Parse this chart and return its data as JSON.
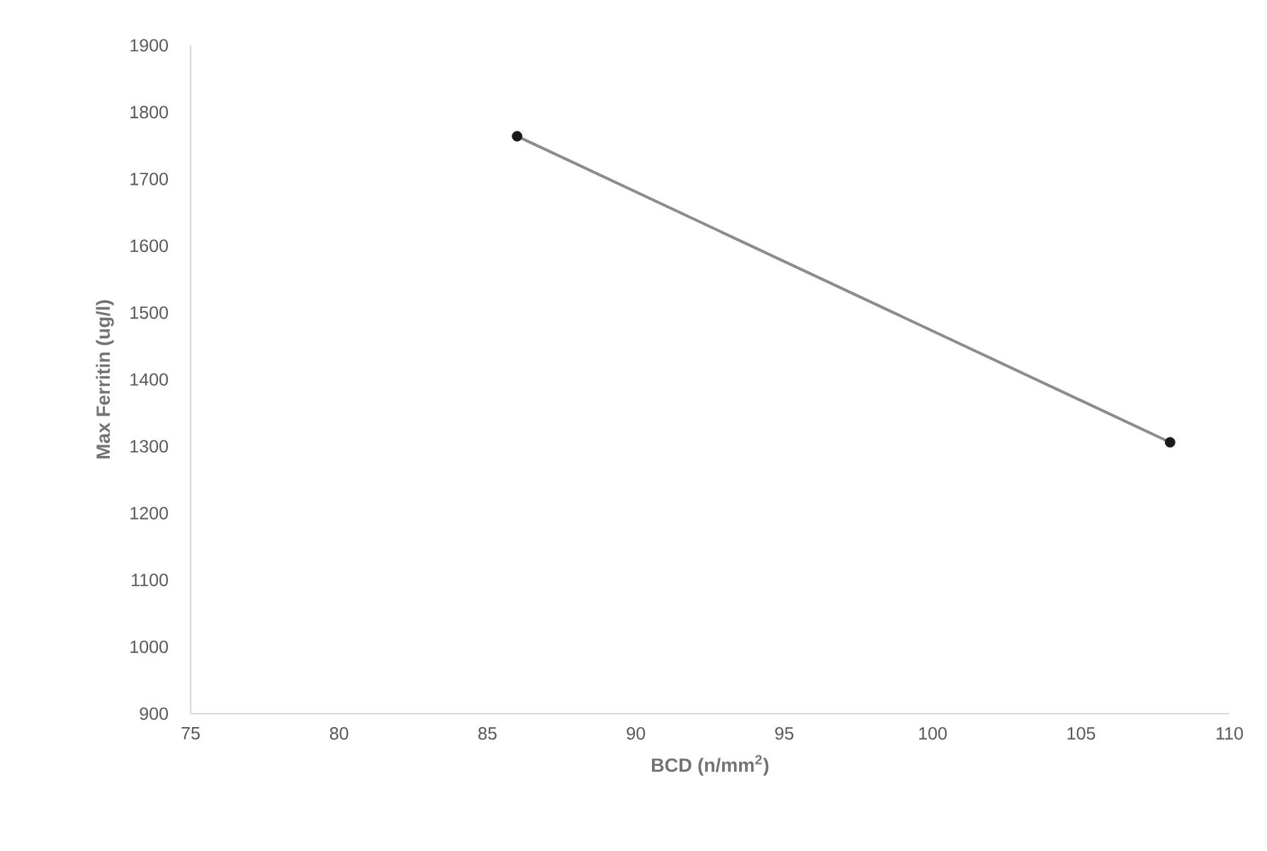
{
  "chart_data": {
    "type": "line",
    "xlabel": "BCD (n/mm$^{2}$)",
    "ylabel": "Max Ferritin (ug/l)",
    "x": [
      86,
      108
    ],
    "series": [
      {
        "color": "#8c8c8c",
        "colors": [
          "#1a1a1a",
          "#1a1a1a"
        ],
        "values": [
          1764,
          1306
        ]
      }
    ],
    "xlim": [
      75,
      110
    ],
    "xticks": [
      75,
      80,
      85,
      90,
      95,
      100,
      105,
      110
    ],
    "ylim": [
      900,
      1900
    ],
    "yticks": [
      900,
      1000,
      1100,
      1200,
      1300,
      1400,
      1500,
      1600,
      1700,
      1800,
      1900
    ],
    "grid": false,
    "marker": "circle",
    "line_style": "solid"
  }
}
